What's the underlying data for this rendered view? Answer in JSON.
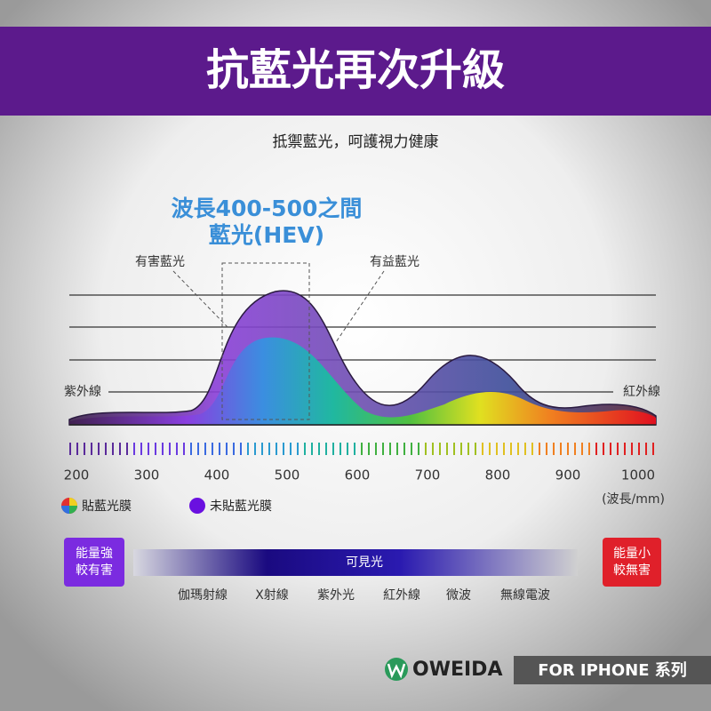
{
  "header": {
    "title": "抗藍光再次升級",
    "subtitle": "抵禦藍光，呵護視力健康"
  },
  "highlight": {
    "lines": [
      "波長400-500之間",
      "藍光(HEV)"
    ]
  },
  "annotations": {
    "harmful": "有害藍光",
    "beneficial": "有益藍光",
    "uv": "紫外線",
    "ir": "紅外線"
  },
  "axis": {
    "ticks": [
      "200",
      "300",
      "400",
      "500",
      "600",
      "700",
      "800",
      "900",
      "1000"
    ],
    "unit": "(波長/mm)"
  },
  "legend": [
    "貼藍光膜",
    "未貼藍光膜"
  ],
  "spectrum": {
    "left": [
      "能量強",
      "較有害"
    ],
    "center": "可見光",
    "right": [
      "能量小",
      "較無害"
    ],
    "labels": [
      "伽瑪射線",
      "X射線",
      "紫外光",
      "紅外線",
      "微波",
      "無線電波"
    ]
  },
  "footer": {
    "brand": "OWEIDA",
    "series": "FOR IPHONE 系列"
  }
}
